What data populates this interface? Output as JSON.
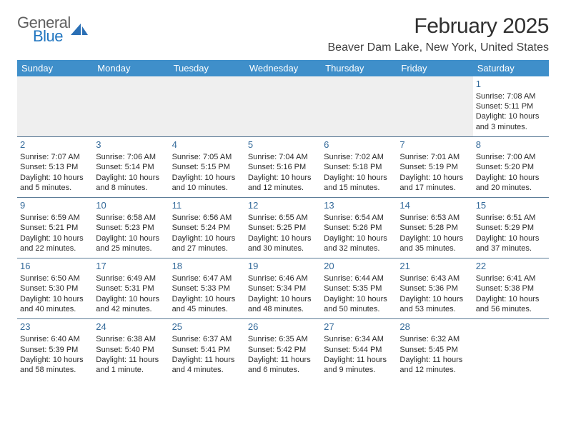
{
  "logo": {
    "text1": "General",
    "text2": "Blue",
    "color_gray": "#606060",
    "color_blue": "#2176c0",
    "shape_color": "#2a6fb5"
  },
  "header": {
    "title": "February 2025",
    "location": "Beaver Dam Lake, New York, United States"
  },
  "colors": {
    "header_bg": "#3f8fca",
    "header_text": "#ffffff",
    "border": "#5a7a96",
    "daynum": "#346a9a",
    "empty_bg": "#efefef"
  },
  "weekdays": [
    "Sunday",
    "Monday",
    "Tuesday",
    "Wednesday",
    "Thursday",
    "Friday",
    "Saturday"
  ],
  "weeks": [
    [
      null,
      null,
      null,
      null,
      null,
      null,
      {
        "n": "1",
        "sunrise": "Sunrise: 7:08 AM",
        "sunset": "Sunset: 5:11 PM",
        "day1": "Daylight: 10 hours",
        "day2": "and 3 minutes."
      }
    ],
    [
      {
        "n": "2",
        "sunrise": "Sunrise: 7:07 AM",
        "sunset": "Sunset: 5:13 PM",
        "day1": "Daylight: 10 hours",
        "day2": "and 5 minutes."
      },
      {
        "n": "3",
        "sunrise": "Sunrise: 7:06 AM",
        "sunset": "Sunset: 5:14 PM",
        "day1": "Daylight: 10 hours",
        "day2": "and 8 minutes."
      },
      {
        "n": "4",
        "sunrise": "Sunrise: 7:05 AM",
        "sunset": "Sunset: 5:15 PM",
        "day1": "Daylight: 10 hours",
        "day2": "and 10 minutes."
      },
      {
        "n": "5",
        "sunrise": "Sunrise: 7:04 AM",
        "sunset": "Sunset: 5:16 PM",
        "day1": "Daylight: 10 hours",
        "day2": "and 12 minutes."
      },
      {
        "n": "6",
        "sunrise": "Sunrise: 7:02 AM",
        "sunset": "Sunset: 5:18 PM",
        "day1": "Daylight: 10 hours",
        "day2": "and 15 minutes."
      },
      {
        "n": "7",
        "sunrise": "Sunrise: 7:01 AM",
        "sunset": "Sunset: 5:19 PM",
        "day1": "Daylight: 10 hours",
        "day2": "and 17 minutes."
      },
      {
        "n": "8",
        "sunrise": "Sunrise: 7:00 AM",
        "sunset": "Sunset: 5:20 PM",
        "day1": "Daylight: 10 hours",
        "day2": "and 20 minutes."
      }
    ],
    [
      {
        "n": "9",
        "sunrise": "Sunrise: 6:59 AM",
        "sunset": "Sunset: 5:21 PM",
        "day1": "Daylight: 10 hours",
        "day2": "and 22 minutes."
      },
      {
        "n": "10",
        "sunrise": "Sunrise: 6:58 AM",
        "sunset": "Sunset: 5:23 PM",
        "day1": "Daylight: 10 hours",
        "day2": "and 25 minutes."
      },
      {
        "n": "11",
        "sunrise": "Sunrise: 6:56 AM",
        "sunset": "Sunset: 5:24 PM",
        "day1": "Daylight: 10 hours",
        "day2": "and 27 minutes."
      },
      {
        "n": "12",
        "sunrise": "Sunrise: 6:55 AM",
        "sunset": "Sunset: 5:25 PM",
        "day1": "Daylight: 10 hours",
        "day2": "and 30 minutes."
      },
      {
        "n": "13",
        "sunrise": "Sunrise: 6:54 AM",
        "sunset": "Sunset: 5:26 PM",
        "day1": "Daylight: 10 hours",
        "day2": "and 32 minutes."
      },
      {
        "n": "14",
        "sunrise": "Sunrise: 6:53 AM",
        "sunset": "Sunset: 5:28 PM",
        "day1": "Daylight: 10 hours",
        "day2": "and 35 minutes."
      },
      {
        "n": "15",
        "sunrise": "Sunrise: 6:51 AM",
        "sunset": "Sunset: 5:29 PM",
        "day1": "Daylight: 10 hours",
        "day2": "and 37 minutes."
      }
    ],
    [
      {
        "n": "16",
        "sunrise": "Sunrise: 6:50 AM",
        "sunset": "Sunset: 5:30 PM",
        "day1": "Daylight: 10 hours",
        "day2": "and 40 minutes."
      },
      {
        "n": "17",
        "sunrise": "Sunrise: 6:49 AM",
        "sunset": "Sunset: 5:31 PM",
        "day1": "Daylight: 10 hours",
        "day2": "and 42 minutes."
      },
      {
        "n": "18",
        "sunrise": "Sunrise: 6:47 AM",
        "sunset": "Sunset: 5:33 PM",
        "day1": "Daylight: 10 hours",
        "day2": "and 45 minutes."
      },
      {
        "n": "19",
        "sunrise": "Sunrise: 6:46 AM",
        "sunset": "Sunset: 5:34 PM",
        "day1": "Daylight: 10 hours",
        "day2": "and 48 minutes."
      },
      {
        "n": "20",
        "sunrise": "Sunrise: 6:44 AM",
        "sunset": "Sunset: 5:35 PM",
        "day1": "Daylight: 10 hours",
        "day2": "and 50 minutes."
      },
      {
        "n": "21",
        "sunrise": "Sunrise: 6:43 AM",
        "sunset": "Sunset: 5:36 PM",
        "day1": "Daylight: 10 hours",
        "day2": "and 53 minutes."
      },
      {
        "n": "22",
        "sunrise": "Sunrise: 6:41 AM",
        "sunset": "Sunset: 5:38 PM",
        "day1": "Daylight: 10 hours",
        "day2": "and 56 minutes."
      }
    ],
    [
      {
        "n": "23",
        "sunrise": "Sunrise: 6:40 AM",
        "sunset": "Sunset: 5:39 PM",
        "day1": "Daylight: 10 hours",
        "day2": "and 58 minutes."
      },
      {
        "n": "24",
        "sunrise": "Sunrise: 6:38 AM",
        "sunset": "Sunset: 5:40 PM",
        "day1": "Daylight: 11 hours",
        "day2": "and 1 minute."
      },
      {
        "n": "25",
        "sunrise": "Sunrise: 6:37 AM",
        "sunset": "Sunset: 5:41 PM",
        "day1": "Daylight: 11 hours",
        "day2": "and 4 minutes."
      },
      {
        "n": "26",
        "sunrise": "Sunrise: 6:35 AM",
        "sunset": "Sunset: 5:42 PM",
        "day1": "Daylight: 11 hours",
        "day2": "and 6 minutes."
      },
      {
        "n": "27",
        "sunrise": "Sunrise: 6:34 AM",
        "sunset": "Sunset: 5:44 PM",
        "day1": "Daylight: 11 hours",
        "day2": "and 9 minutes."
      },
      {
        "n": "28",
        "sunrise": "Sunrise: 6:32 AM",
        "sunset": "Sunset: 5:45 PM",
        "day1": "Daylight: 11 hours",
        "day2": "and 12 minutes."
      },
      null
    ]
  ]
}
